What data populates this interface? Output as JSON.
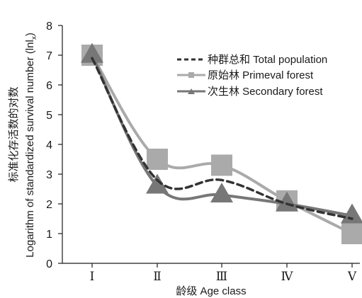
{
  "chart_data": {
    "type": "line",
    "xlabel": "龄级 Age class",
    "ylabel_cn": "标准化存活数的对数",
    "ylabel_en": "Logarithm of standardized survival number (lnl",
    "ylabel_sub": "x",
    "ylabel_end": ")",
    "categories": [
      "Ⅰ",
      "Ⅱ",
      "Ⅲ",
      "Ⅳ",
      "Ⅴ"
    ],
    "ylim": [
      0,
      8
    ],
    "yticks": [
      0,
      1,
      2,
      3,
      4,
      5,
      6,
      7,
      8
    ],
    "legend_position": "top-right",
    "grid": false,
    "series": [
      {
        "name": "种群总和 Total population",
        "values": [
          6.9,
          2.8,
          2.8,
          2.0,
          1.5
        ],
        "color": "#333333",
        "line_style": "dashed",
        "marker": "none"
      },
      {
        "name": "原始林 Primeval forest",
        "values": [
          7.0,
          3.5,
          3.3,
          2.1,
          1.0
        ],
        "color": "#aaaaaa",
        "line_style": "solid",
        "marker": "square"
      },
      {
        "name": "次生林 Secondary forest",
        "values": [
          7.0,
          2.6,
          2.3,
          2.0,
          1.6
        ],
        "color": "#777777",
        "line_style": "solid",
        "marker": "triangle"
      }
    ]
  }
}
